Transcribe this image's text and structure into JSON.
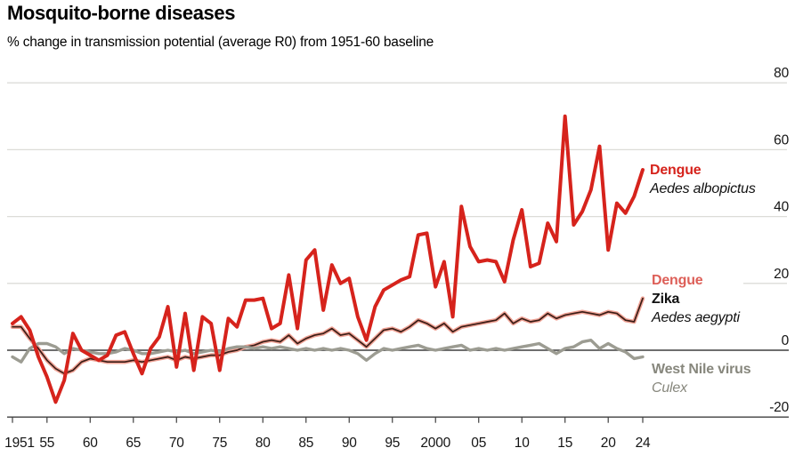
{
  "header": {
    "title": "Mosquito-borne diseases",
    "subtitle": "% change in transmission potential (average R0) from 1951-60 baseline"
  },
  "legends": {
    "albopictus": {
      "disease": "Dengue",
      "species": "Aedes albopictus"
    },
    "aegypti": {
      "disease_1": "Dengue",
      "disease_2": "Zika",
      "species": "Aedes aegypti"
    },
    "west_nile": {
      "disease": "West Nile virus",
      "species": "Culex"
    }
  },
  "colors": {
    "albopictus_line": "#d6231c",
    "aegypti_core": "#3a1d16",
    "aegypti_halo": "#f0a396",
    "aegypti_label": "#dd5f58",
    "west_nile_line": "#9c9c92",
    "west_nile_label": "#87877d",
    "gridline": "#dcdcd8",
    "zero_line": "#3f3f3f",
    "axis_text": "#141414"
  },
  "chart_data": {
    "type": "line",
    "title": "Mosquito-borne diseases",
    "subtitle": "% change in transmission potential (average R0) from 1951-60 baseline",
    "grid": "horizontal",
    "legend_position": "right-inline",
    "ylim": [
      -20,
      80
    ],
    "x_years": {
      "start": 1951,
      "end": 2024,
      "step": 1
    },
    "x_ticks": [
      {
        "year": 1951,
        "label": "1951"
      },
      {
        "year": 1955,
        "label": "55"
      },
      {
        "year": 1960,
        "label": "60"
      },
      {
        "year": 1965,
        "label": "65"
      },
      {
        "year": 1970,
        "label": "70"
      },
      {
        "year": 1975,
        "label": "75"
      },
      {
        "year": 1980,
        "label": "80"
      },
      {
        "year": 1985,
        "label": "85"
      },
      {
        "year": 1990,
        "label": "90"
      },
      {
        "year": 1995,
        "label": "95"
      },
      {
        "year": 2000,
        "label": "2000"
      },
      {
        "year": 2005,
        "label": "05"
      },
      {
        "year": 2010,
        "label": "10"
      },
      {
        "year": 2015,
        "label": "15"
      },
      {
        "year": 2020,
        "label": "20"
      },
      {
        "year": 2024,
        "label": "24"
      }
    ],
    "y_ticks": [
      {
        "value": 80,
        "label": "80"
      },
      {
        "value": 60,
        "label": "60"
      },
      {
        "value": 40,
        "label": "40"
      },
      {
        "value": 20,
        "label": "20"
      },
      {
        "value": 0,
        "label": "0"
      },
      {
        "value": -20,
        "label": "-20"
      }
    ],
    "series": [
      {
        "id": "dengue_albopictus",
        "name": "Dengue (Aedes albopictus)",
        "color": "#d6231c",
        "values": [
          8,
          10,
          6,
          -2,
          -8,
          -15.5,
          -9,
          5,
          0,
          -1.5,
          -3,
          -1.5,
          4.5,
          5.5,
          -1,
          -7,
          0.5,
          4,
          13,
          -5,
          11,
          -6,
          10,
          8,
          -6,
          9.5,
          7,
          15,
          15,
          15.5,
          6.5,
          8,
          22.5,
          6.5,
          27,
          30,
          12,
          25.5,
          20,
          21.5,
          10,
          3,
          13,
          18,
          19.5,
          21,
          22,
          34.5,
          35,
          19,
          26.5,
          10,
          43,
          31,
          26.5,
          27,
          26.5,
          20.5,
          33,
          42,
          25,
          26,
          38,
          32.5,
          70,
          37.5,
          41.5,
          48,
          61,
          30,
          44,
          41,
          46,
          54
        ]
      },
      {
        "id": "dengue_zika_aegypti",
        "name": "Dengue / Zika (Aedes aegypti)",
        "color": "#3a1d16",
        "halo": "#f0a396",
        "values": [
          7,
          7,
          3.5,
          0.5,
          -3,
          -5.5,
          -7,
          -6,
          -3.5,
          -2.5,
          -3,
          -3.5,
          -3.5,
          -3.5,
          -3,
          -3.5,
          -3,
          -2.5,
          -2,
          -3,
          -2,
          -2.5,
          -2,
          -1.5,
          -1.5,
          -0.5,
          0,
          1,
          1.5,
          2.5,
          3,
          2.5,
          4.5,
          2,
          3.5,
          4.5,
          5,
          6.5,
          4.5,
          5,
          3,
          1,
          3.5,
          6,
          6.5,
          5.5,
          7,
          9,
          8,
          6.5,
          8,
          5.5,
          7,
          7.5,
          8,
          8.5,
          9,
          11,
          8,
          9.5,
          8.5,
          9,
          11,
          9.5,
          10.5,
          11,
          11.5,
          11,
          10.5,
          11.5,
          11,
          9,
          8.5,
          15.5
        ]
      },
      {
        "id": "west_nile_culex",
        "name": "West Nile virus (Culex)",
        "color": "#9c9c92",
        "values": [
          -2,
          -3.5,
          0.5,
          2,
          2,
          1,
          -1,
          0.5,
          0,
          -0.5,
          -1,
          -1,
          -0.5,
          0.5,
          0,
          -1,
          -1,
          -0.5,
          0,
          -0.5,
          0,
          -1,
          -0.5,
          0,
          -0.5,
          0.5,
          1,
          1,
          0.5,
          1,
          0.5,
          1,
          0.5,
          0,
          0.5,
          0,
          0.5,
          0,
          0.5,
          0,
          -1,
          -3,
          -1,
          0.5,
          0,
          0.5,
          1,
          1.5,
          0.5,
          0,
          0.5,
          1,
          1.5,
          0,
          0.5,
          0,
          0.5,
          0,
          0.5,
          1,
          1.5,
          2,
          0.5,
          -1,
          0.5,
          1,
          2.5,
          3,
          0.5,
          2,
          0.5,
          -0.5,
          -2.5,
          -2
        ]
      }
    ]
  }
}
